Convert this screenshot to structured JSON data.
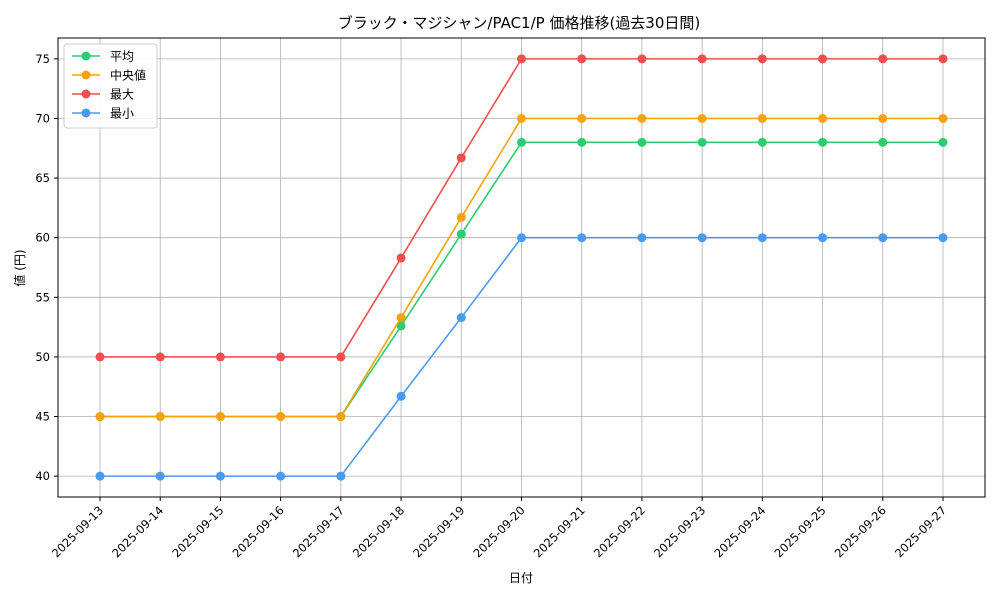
{
  "chart_data": {
    "type": "line",
    "title": "ブラック・マジシャン/PAC1/P 価格推移(過去30日間)",
    "xlabel": "日付",
    "ylabel": "値 (円)",
    "categories": [
      "2025-09-13",
      "2025-09-14",
      "2025-09-15",
      "2025-09-16",
      "2025-09-17",
      "2025-09-18",
      "2025-09-19",
      "2025-09-20",
      "2025-09-21",
      "2025-09-22",
      "2025-09-23",
      "2025-09-24",
      "2025-09-25",
      "2025-09-26",
      "2025-09-27"
    ],
    "ylim": [
      38.25,
      76.75
    ],
    "yticks": [
      40,
      45,
      50,
      55,
      60,
      65,
      70,
      75
    ],
    "grid": true,
    "legend_position": "upper-left",
    "series": [
      {
        "name": "平均",
        "color": "#2ecc71",
        "values": [
          45,
          45,
          45,
          45,
          45,
          52.6,
          60.3,
          68,
          68,
          68,
          68,
          68,
          68,
          68,
          68
        ]
      },
      {
        "name": "中央値",
        "color": "#f5a30a",
        "values": [
          45,
          45,
          45,
          45,
          45,
          53.3,
          61.7,
          70,
          70,
          70,
          70,
          70,
          70,
          70,
          70
        ]
      },
      {
        "name": "最大",
        "color": "#ef4f4f",
        "values": [
          50,
          50,
          50,
          50,
          50,
          58.3,
          66.7,
          75,
          75,
          75,
          75,
          75,
          75,
          75,
          75
        ]
      },
      {
        "name": "最小",
        "color": "#4a9af0",
        "values": [
          40,
          40,
          40,
          40,
          40,
          46.7,
          53.3,
          60,
          60,
          60,
          60,
          60,
          60,
          60,
          60
        ]
      }
    ]
  }
}
